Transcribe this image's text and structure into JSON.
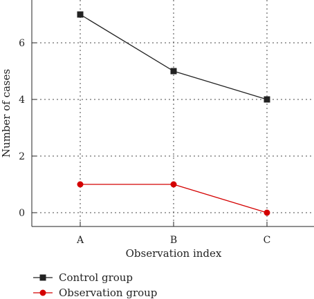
{
  "chart_data": {
    "type": "line",
    "categories": [
      "A",
      "B",
      "C"
    ],
    "xlabel": "Observation index",
    "ylabel": "Number of cases",
    "ylim": [
      -0.5,
      7.4
    ],
    "yticks": [
      0,
      2,
      4,
      6
    ],
    "grid": true,
    "legend_position": "bottom-left",
    "series": [
      {
        "name": "Control group",
        "values": [
          7,
          5,
          4
        ],
        "color": "#222222",
        "marker": "square"
      },
      {
        "name": "Observation group",
        "values": [
          1,
          1,
          0
        ],
        "color": "#d40000",
        "marker": "circle"
      }
    ]
  }
}
